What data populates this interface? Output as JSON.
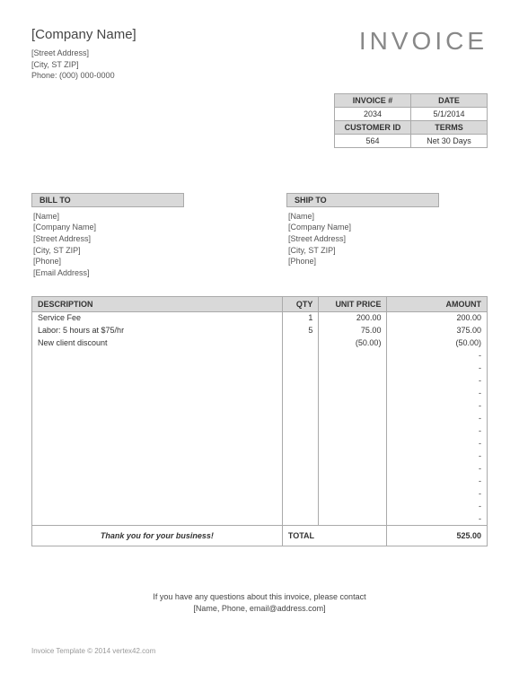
{
  "header": {
    "company_name": "[Company Name]",
    "street": "[Street Address]",
    "city_st_zip": "[City, ST  ZIP]",
    "phone_label": "Phone: (000) 000-0000",
    "title": "INVOICE"
  },
  "meta": {
    "invoice_num_label": "INVOICE #",
    "date_label": "DATE",
    "invoice_num": "2034",
    "date": "5/1/2014",
    "customer_id_label": "CUSTOMER ID",
    "terms_label": "TERMS",
    "customer_id": "564",
    "terms": "Net 30 Days"
  },
  "billto": {
    "header": "BILL TO",
    "name": "[Name]",
    "company": "[Company Name]",
    "street": "[Street Address]",
    "city": "[City, ST  ZIP]",
    "phone": "[Phone]",
    "email": "[Email Address]"
  },
  "shipto": {
    "header": "SHIP TO",
    "name": "[Name]",
    "company": "[Company Name]",
    "street": "[Street Address]",
    "city": "[City, ST  ZIP]",
    "phone": "[Phone]"
  },
  "items": {
    "columns": {
      "desc": "DESCRIPTION",
      "qty": "QTY",
      "price": "UNIT PRICE",
      "amount": "AMOUNT"
    },
    "rows": [
      {
        "desc": "Service Fee",
        "qty": "1",
        "price": "200.00",
        "amount": "200.00"
      },
      {
        "desc": "Labor: 5 hours at $75/hr",
        "qty": "5",
        "price": "75.00",
        "amount": "375.00"
      },
      {
        "desc": "New client discount",
        "qty": "",
        "price": "(50.00)",
        "amount": "(50.00)"
      },
      {
        "desc": "",
        "qty": "",
        "price": "",
        "amount": "-"
      },
      {
        "desc": "",
        "qty": "",
        "price": "",
        "amount": "-"
      },
      {
        "desc": "",
        "qty": "",
        "price": "",
        "amount": "-"
      },
      {
        "desc": "",
        "qty": "",
        "price": "",
        "amount": "-"
      },
      {
        "desc": "",
        "qty": "",
        "price": "",
        "amount": "-"
      },
      {
        "desc": "",
        "qty": "",
        "price": "",
        "amount": "-"
      },
      {
        "desc": "",
        "qty": "",
        "price": "",
        "amount": "-"
      },
      {
        "desc": "",
        "qty": "",
        "price": "",
        "amount": "-"
      },
      {
        "desc": "",
        "qty": "",
        "price": "",
        "amount": "-"
      },
      {
        "desc": "",
        "qty": "",
        "price": "",
        "amount": "-"
      },
      {
        "desc": "",
        "qty": "",
        "price": "",
        "amount": "-"
      },
      {
        "desc": "",
        "qty": "",
        "price": "",
        "amount": "-"
      },
      {
        "desc": "",
        "qty": "",
        "price": "",
        "amount": "-"
      },
      {
        "desc": "",
        "qty": "",
        "price": "",
        "amount": "-"
      }
    ]
  },
  "total": {
    "thankyou": "Thank you for your business!",
    "label": "TOTAL",
    "value": "525.00"
  },
  "footer": {
    "line1": "If you have any questions about this invoice, please contact",
    "line2": "[Name, Phone, email@address.com]"
  },
  "copyright": "Invoice Template © 2014 vertex42.com",
  "colors": {
    "header_bg": "#d9d9d9",
    "border": "#aaaaaa",
    "title": "#888888",
    "text": "#333333"
  }
}
